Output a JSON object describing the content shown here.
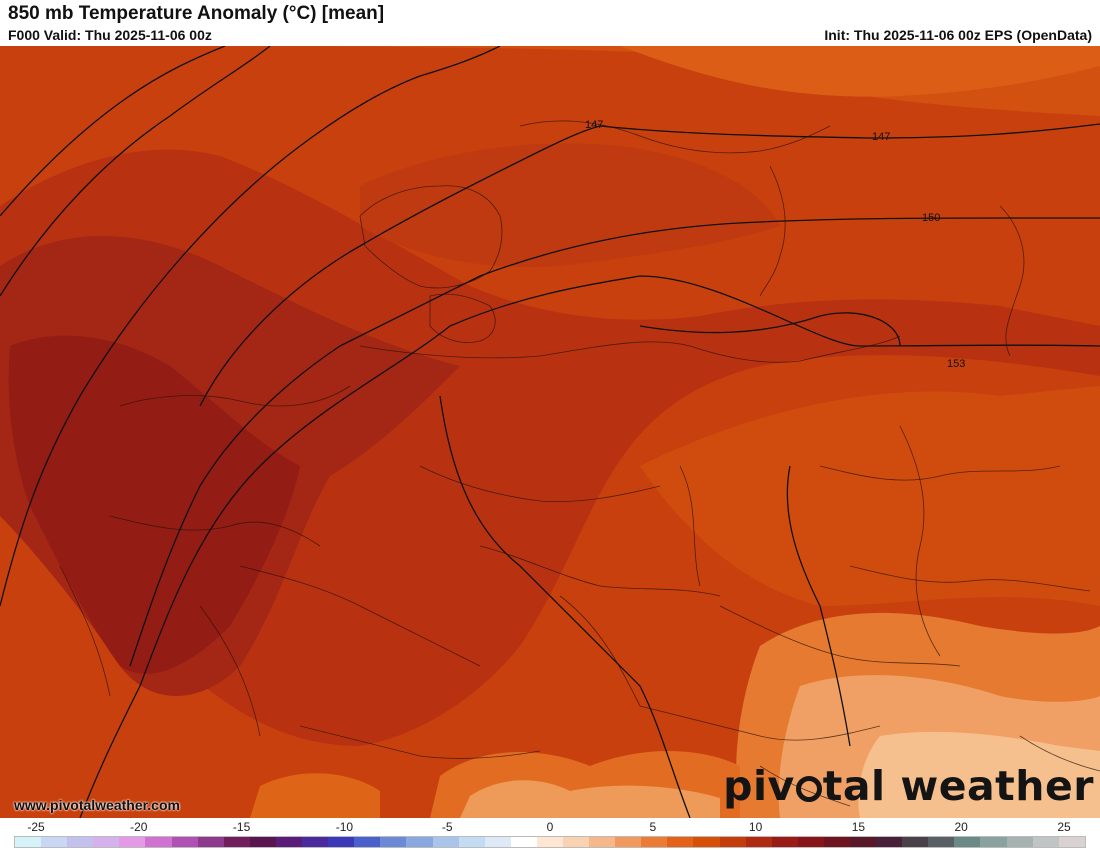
{
  "header": {
    "title": "850 mb Temperature Anomaly (°C) [mean]",
    "valid": "F000 Valid: Thu 2025-11-06 00z",
    "init": "Init: Thu 2025-11-06 00z EPS (OpenData)"
  },
  "footer": {
    "website": "www.pivotalweather.com",
    "logo_pre": "piv",
    "logo_post": "tal weather"
  },
  "contours": [
    {
      "label": "147"
    },
    {
      "label": "147"
    },
    {
      "label": "150"
    },
    {
      "label": "153"
    }
  ],
  "colorbar": {
    "ticks": [
      "-25",
      "-20",
      "-15",
      "-10",
      "-5",
      "0",
      "5",
      "10",
      "15",
      "20",
      "25"
    ],
    "colors": [
      "#d4f2f8",
      "#c8d8f4",
      "#c4c0ee",
      "#d4b0ec",
      "#e49ae6",
      "#d070d0",
      "#b050b4",
      "#8e3a8c",
      "#701e5c",
      "#5a1450",
      "#5a1c78",
      "#4a2a9c",
      "#3a3ab8",
      "#4a60cc",
      "#6a8ad6",
      "#8aa8e0",
      "#a8c4ea",
      "#c4dcf2",
      "#dde9f6",
      "#ffffff",
      "#fde6d2",
      "#f9d2b2",
      "#f6b888",
      "#f29a5e",
      "#ec7c34",
      "#e46218",
      "#d65008",
      "#c43c0a",
      "#b02a12",
      "#9a1a16",
      "#861418",
      "#6e1420",
      "#58182a",
      "#48203a",
      "#4a4048",
      "#586064",
      "#6a8a86",
      "#88a29e",
      "#a6b2b0",
      "#c0c4c4",
      "#d8d2d2"
    ]
  },
  "map_colors": {
    "anomaly_mid": "#cf4a0c",
    "anomaly_high": "#a82a10",
    "anomaly_max": "#8e1a14",
    "anomaly_warm": "#e06a1e",
    "anomaly_low": "#f2a264"
  }
}
